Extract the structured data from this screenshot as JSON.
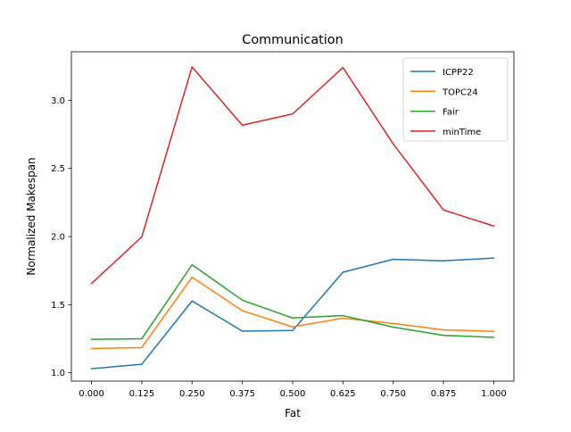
{
  "chart_data": {
    "type": "line",
    "title": "Communication",
    "xlabel": "Fat",
    "ylabel": "Normalized Makespan",
    "x": [
      0.0,
      0.125,
      0.25,
      0.375,
      0.5,
      0.625,
      0.75,
      0.875,
      1.0
    ],
    "x_tick_labels": [
      "0.000",
      "0.125",
      "0.250",
      "0.375",
      "0.500",
      "0.625",
      "0.750",
      "0.875",
      "1.000"
    ],
    "xlim": [
      -0.05,
      1.05
    ],
    "y_ticks": [
      1.0,
      1.5,
      2.0,
      2.5,
      3.0
    ],
    "y_tick_labels": [
      "1.0",
      "1.5",
      "2.0",
      "2.5",
      "3.0"
    ],
    "ylim": [
      0.939,
      3.356
    ],
    "grid": false,
    "legend_position": "upper right",
    "series": [
      {
        "name": "ICPP22",
        "color": "#1f77b4",
        "values": [
          1.03,
          1.063,
          1.527,
          1.306,
          1.311,
          1.738,
          1.833,
          1.822,
          1.842
        ]
      },
      {
        "name": "TOPC24",
        "color": "#ff7f0e",
        "values": [
          1.178,
          1.185,
          1.701,
          1.456,
          1.337,
          1.401,
          1.362,
          1.315,
          1.304
        ]
      },
      {
        "name": "Fair",
        "color": "#2ca02c",
        "values": [
          1.245,
          1.25,
          1.793,
          1.533,
          1.402,
          1.42,
          1.335,
          1.275,
          1.26
        ]
      },
      {
        "name": "minTime",
        "color": "#d62728",
        "values": [
          1.655,
          1.997,
          3.245,
          2.817,
          2.9,
          3.24,
          2.68,
          2.195,
          2.077
        ]
      }
    ]
  }
}
